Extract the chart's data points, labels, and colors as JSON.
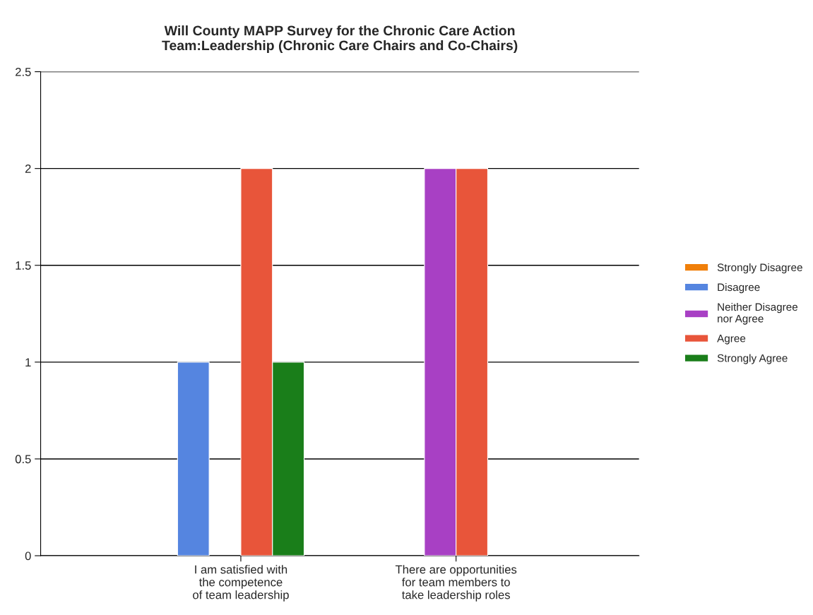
{
  "chart_data": {
    "type": "bar",
    "title": "Will County MAPP Survey for the Chronic Care Action\nTeam:Leadership (Chronic Care Chairs and Co-Chairs)",
    "categories": [
      "I am satisfied with\nthe competence\nof team leadership",
      "There are opportunities\nfor team members to\ntake leadership roles"
    ],
    "series": [
      {
        "name": "Strongly Disagree",
        "color": "#f07f09",
        "values": [
          null,
          null
        ]
      },
      {
        "name": "Disagree",
        "color": "#5585e0",
        "values": [
          1,
          null
        ]
      },
      {
        "name": "Neither Disagree\nnor Agree",
        "color": "#a840c4",
        "values": [
          0,
          2
        ]
      },
      {
        "name": "Agree",
        "color": "#e8553a",
        "values": [
          2,
          2
        ]
      },
      {
        "name": "Strongly Agree",
        "color": "#1a7e1a",
        "values": [
          1,
          null
        ]
      }
    ],
    "ylim": [
      0,
      2.5
    ],
    "yticks": [
      0,
      0.5,
      1,
      1.5,
      2,
      2.5
    ],
    "grid": "y",
    "legend": "right"
  }
}
